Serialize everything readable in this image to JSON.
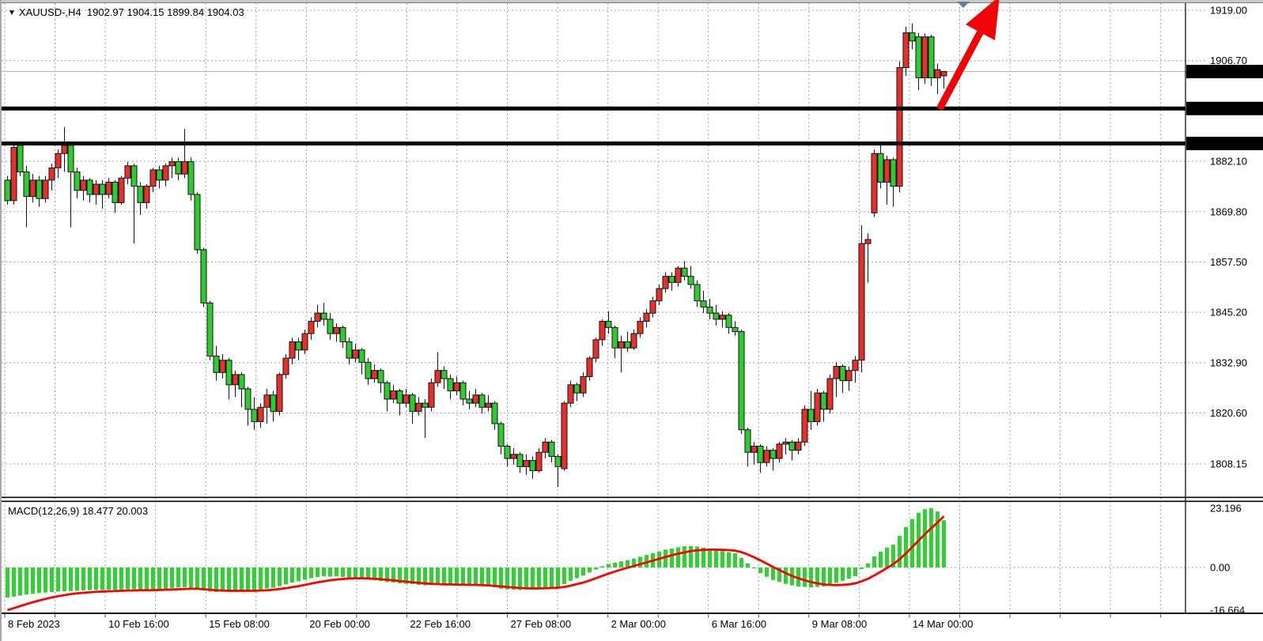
{
  "window": {
    "title_symbol": "XAUUSD-,H4",
    "ohlc_line": "1902.97 1904.15 1899.84 1904.03"
  },
  "chart_data": {
    "type": "candlestick",
    "symbol": "XAUUSD-",
    "timeframe": "H4",
    "title": "XAUUSD-,H4 1902.97 1904.15 1899.84 1904.03",
    "current_candle": {
      "open": 1902.97,
      "high": 1904.15,
      "low": 1899.84,
      "close": 1904.03
    },
    "legend_position": "top-left",
    "grid": true,
    "x_labels": [
      "8 Feb 2023",
      "10 Feb 16:00",
      "15 Feb 08:00",
      "20 Feb 00:00",
      "22 Feb 16:00",
      "27 Feb 08:00",
      "2 Mar 00:00",
      "6 Mar 16:00",
      "9 Mar 08:00",
      "14 Mar 00:00"
    ],
    "price_axis": {
      "min": 1808.15,
      "max": 1919.0,
      "ticks": [
        {
          "label": "1919.00",
          "value": 1919.0
        },
        {
          "label": "1906.70",
          "value": 1906.7
        },
        {
          "label": "1882.10",
          "value": 1882.1
        },
        {
          "label": "1869.80",
          "value": 1869.8
        },
        {
          "label": "1857.50",
          "value": 1857.5
        },
        {
          "label": "1845.20",
          "value": 1845.2
        },
        {
          "label": "1832.90",
          "value": 1832.9
        },
        {
          "label": "1820.60",
          "value": 1820.6
        },
        {
          "label": "1808.15",
          "value": 1808.15
        }
      ]
    },
    "price_lines": [
      {
        "label": "1904.03",
        "value": 1904.03,
        "style": "current-price"
      },
      {
        "label": "1895.00",
        "value": 1895.0,
        "style": "black-hline"
      },
      {
        "label": "1886.45",
        "value": 1886.45,
        "style": "black-hline"
      }
    ],
    "colors": {
      "bull": "#e8302a",
      "bear": "#2fcc2f",
      "wick": "#111111",
      "macd_hist": "#2fd32f",
      "macd_signal": "#ff0000",
      "grid": "#9aa4b0",
      "hline": "#000000",
      "current_line": "#b3b8c0",
      "arrow": "#ef0505",
      "marker": "#6a7f96",
      "label_bg": "#000000",
      "label_fg": "#ffffff"
    },
    "candles": [
      [
        1877.5,
        1878.5,
        1871.5,
        1872.5
      ],
      [
        1872.5,
        1886.5,
        1871.5,
        1885.5
      ],
      [
        1886,
        1886.5,
        1878.5,
        1879.5
      ],
      [
        1879.5,
        1881,
        1866,
        1873.5
      ],
      [
        1873.5,
        1879,
        1872,
        1877.5
      ],
      [
        1877.5,
        1878.5,
        1871,
        1873
      ],
      [
        1873,
        1878.5,
        1872,
        1877.5
      ],
      [
        1877.5,
        1881.5,
        1875,
        1880.5
      ],
      [
        1880.5,
        1885,
        1878,
        1884
      ],
      [
        1884,
        1890.5,
        1879.5,
        1886
      ],
      [
        1886,
        1886.5,
        1866,
        1879.5
      ],
      [
        1879.5,
        1880.5,
        1873,
        1875
      ],
      [
        1875,
        1878.5,
        1872.5,
        1877.5
      ],
      [
        1877.5,
        1878,
        1872,
        1874
      ],
      [
        1874,
        1877.5,
        1871.5,
        1876.5
      ],
      [
        1876.5,
        1877.5,
        1870.5,
        1874
      ],
      [
        1874,
        1878,
        1873,
        1877
      ],
      [
        1877,
        1877.5,
        1869.5,
        1872
      ],
      [
        1872,
        1878.5,
        1871.5,
        1878
      ],
      [
        1878,
        1882,
        1876.5,
        1881
      ],
      [
        1881,
        1881.5,
        1862,
        1876
      ],
      [
        1876,
        1877,
        1869,
        1872
      ],
      [
        1872,
        1876.5,
        1870.5,
        1876
      ],
      [
        1876,
        1880.5,
        1874.5,
        1880
      ],
      [
        1880,
        1881,
        1875.5,
        1877.5
      ],
      [
        1877.5,
        1881.5,
        1876,
        1881
      ],
      [
        1881,
        1883,
        1878,
        1882
      ],
      [
        1882,
        1883,
        1877.5,
        1879
      ],
      [
        1879,
        1890,
        1878,
        1882
      ],
      [
        1882,
        1883,
        1872.5,
        1874
      ],
      [
        1874,
        1874.5,
        1859.5,
        1860.5
      ],
      [
        1860.5,
        1861,
        1846.5,
        1847.5
      ],
      [
        1847.5,
        1848,
        1833.5,
        1834.5
      ],
      [
        1834.5,
        1837,
        1828.5,
        1830.5
      ],
      [
        1830.5,
        1835,
        1829,
        1833.5
      ],
      [
        1833.5,
        1834,
        1824,
        1827.5
      ],
      [
        1827.5,
        1831,
        1824.5,
        1830
      ],
      [
        1830,
        1830.5,
        1822,
        1826.5
      ],
      [
        1826.5,
        1827,
        1817.5,
        1821.5
      ],
      [
        1821.5,
        1824.5,
        1816.5,
        1818.5
      ],
      [
        1818.5,
        1823,
        1817,
        1822
      ],
      [
        1822,
        1826.5,
        1818,
        1825
      ],
      [
        1825,
        1826,
        1818.5,
        1821
      ],
      [
        1821,
        1830.5,
        1820,
        1830
      ],
      [
        1830,
        1835,
        1829,
        1834
      ],
      [
        1834,
        1839,
        1832.5,
        1838
      ],
      [
        1838,
        1839,
        1833.5,
        1836
      ],
      [
        1836,
        1841,
        1835,
        1840
      ],
      [
        1840,
        1844,
        1838.5,
        1843
      ],
      [
        1843,
        1847,
        1841.5,
        1845
      ],
      [
        1845,
        1847.5,
        1842,
        1843.5
      ],
      [
        1843.5,
        1845,
        1838.5,
        1840
      ],
      [
        1840,
        1842.5,
        1838,
        1841.5
      ],
      [
        1841.5,
        1842,
        1836.5,
        1838
      ],
      [
        1838,
        1839,
        1832.5,
        1834
      ],
      [
        1834,
        1837.5,
        1833,
        1836
      ],
      [
        1836,
        1836.5,
        1830,
        1833
      ],
      [
        1833,
        1834,
        1827.5,
        1829
      ],
      [
        1829,
        1832.5,
        1828,
        1831
      ],
      [
        1831,
        1831.5,
        1825.5,
        1828
      ],
      [
        1828,
        1828.5,
        1821,
        1824
      ],
      [
        1824,
        1827.5,
        1823,
        1826
      ],
      [
        1826,
        1826.5,
        1820,
        1823
      ],
      [
        1823,
        1826.5,
        1822,
        1825
      ],
      [
        1825,
        1825.5,
        1818,
        1821
      ],
      [
        1821,
        1824.5,
        1820,
        1823
      ],
      [
        1823,
        1824,
        1814.5,
        1822
      ],
      [
        1822,
        1829,
        1821,
        1828
      ],
      [
        1828,
        1835.5,
        1827,
        1831
      ],
      [
        1831,
        1832,
        1826.5,
        1829
      ],
      [
        1829,
        1830,
        1824,
        1826
      ],
      [
        1826,
        1829.5,
        1825,
        1828
      ],
      [
        1828,
        1828.5,
        1822.5,
        1824
      ],
      [
        1824,
        1826,
        1821.5,
        1823
      ],
      [
        1823,
        1826.5,
        1822,
        1825
      ],
      [
        1825,
        1825.5,
        1820.5,
        1822
      ],
      [
        1822,
        1825,
        1821,
        1823
      ],
      [
        1823,
        1823.5,
        1816.5,
        1818
      ],
      [
        1818,
        1818.5,
        1810.5,
        1812.5
      ],
      [
        1812.5,
        1813,
        1807.5,
        1809.5
      ],
      [
        1809.5,
        1812,
        1808,
        1810.5
      ],
      [
        1810.5,
        1811,
        1806,
        1807.5
      ],
      [
        1807.5,
        1810.5,
        1805.5,
        1809
      ],
      [
        1809,
        1810,
        1804.5,
        1806.5
      ],
      [
        1806.5,
        1812,
        1806,
        1811
      ],
      [
        1811,
        1814.5,
        1809.5,
        1813.5
      ],
      [
        1813.5,
        1814,
        1808.5,
        1810
      ],
      [
        1810,
        1810.5,
        1802.5,
        1807.5
      ],
      [
        1807,
        1823.5,
        1806.5,
        1823
      ],
      [
        1823,
        1828.5,
        1822,
        1827.5
      ],
      [
        1827.5,
        1828,
        1823.5,
        1825.5
      ],
      [
        1825.5,
        1830.5,
        1824.5,
        1829.5
      ],
      [
        1829.5,
        1834.5,
        1828.5,
        1834
      ],
      [
        1834,
        1839,
        1833,
        1838.5
      ],
      [
        1838.5,
        1843.5,
        1837,
        1843
      ],
      [
        1843,
        1845.5,
        1840,
        1841.5
      ],
      [
        1841.5,
        1842,
        1834,
        1836.5
      ],
      [
        1836.5,
        1839.5,
        1830.5,
        1838
      ],
      [
        1838,
        1840.5,
        1835.5,
        1836.5
      ],
      [
        1836.5,
        1841,
        1836,
        1840
      ],
      [
        1840,
        1844,
        1839,
        1843
      ],
      [
        1843,
        1846,
        1841.5,
        1845
      ],
      [
        1845,
        1849,
        1844,
        1848
      ],
      [
        1848,
        1852,
        1847,
        1851
      ],
      [
        1851,
        1855,
        1850,
        1854
      ],
      [
        1854,
        1855,
        1850.5,
        1852.5
      ],
      [
        1852.5,
        1856.5,
        1851.5,
        1856
      ],
      [
        1856,
        1857.7,
        1853,
        1854
      ],
      [
        1854,
        1856.5,
        1851,
        1852
      ],
      [
        1852,
        1853,
        1846.5,
        1848
      ],
      [
        1848,
        1850.5,
        1845,
        1846.5
      ],
      [
        1846.5,
        1848.5,
        1843.5,
        1845
      ],
      [
        1845,
        1847,
        1842,
        1843.5
      ],
      [
        1843.5,
        1845.5,
        1841.5,
        1844.5
      ],
      [
        1844.5,
        1845,
        1840,
        1841.5
      ],
      [
        1841.5,
        1843,
        1839.5,
        1840.5
      ],
      [
        1840.5,
        1841,
        1815.5,
        1816.5
      ],
      [
        1816.5,
        1817,
        1807.5,
        1811
      ],
      [
        1811,
        1813.5,
        1808,
        1812.5
      ],
      [
        1812.5,
        1813,
        1806,
        1808.5
      ],
      [
        1808.5,
        1812.5,
        1807.5,
        1811.5
      ],
      [
        1811.5,
        1812,
        1806.5,
        1809.5
      ],
      [
        1809.5,
        1813.5,
        1808.5,
        1813
      ],
      [
        1813,
        1814.5,
        1810.5,
        1813.5
      ],
      [
        1813.5,
        1814,
        1809,
        1811.5
      ],
      [
        1811.5,
        1814.5,
        1810.5,
        1813.5
      ],
      [
        1813.5,
        1822.5,
        1812.5,
        1821.5
      ],
      [
        1821.5,
        1826,
        1816.5,
        1818.5
      ],
      [
        1818.5,
        1826.5,
        1817.5,
        1825.5
      ],
      [
        1825.5,
        1826,
        1818.5,
        1821.5
      ],
      [
        1821.5,
        1830,
        1820.5,
        1829
      ],
      [
        1829,
        1833,
        1824.5,
        1832
      ],
      [
        1832,
        1832.5,
        1825.5,
        1828.5
      ],
      [
        1828.5,
        1832,
        1826,
        1831
      ],
      [
        1831,
        1834.5,
        1828,
        1833.5
      ],
      [
        1833.5,
        1866.5,
        1830.5,
        1862
      ],
      [
        1862,
        1864.5,
        1852.5,
        1863
      ],
      [
        1869.5,
        1885,
        1868.5,
        1884
      ],
      [
        1884,
        1886.5,
        1875.5,
        1877
      ],
      [
        1877,
        1883.5,
        1871.5,
        1882.5
      ],
      [
        1882.5,
        1883,
        1871,
        1876
      ],
      [
        1876,
        1906.5,
        1874.5,
        1905
      ],
      [
        1905,
        1915,
        1903,
        1913.5
      ],
      [
        1913.5,
        1915.8,
        1909.5,
        1911.5
      ],
      [
        1912.5,
        1913.5,
        1899.5,
        1902.5
      ],
      [
        1902.5,
        1913.3,
        1901,
        1912.5
      ],
      [
        1912.5,
        1913,
        1900.5,
        1902.5
      ],
      [
        1902.5,
        1906,
        1898.5,
        1904.5
      ],
      [
        1902.97,
        1904.15,
        1899.84,
        1904.03
      ]
    ],
    "macd": {
      "label": "MACD(12,26,9)",
      "values_line": "18.477 20.003",
      "main_current": 18.477,
      "signal_current": 20.003,
      "axis_ticks": [
        {
          "label": "23.196",
          "value": 23.196
        },
        {
          "label": "0.00",
          "value": 0
        },
        {
          "label": "-16.664",
          "value": -16.664
        }
      ],
      "histogram": [
        -11.8,
        -11.4,
        -11.0,
        -10.6,
        -10.3,
        -10.0,
        -9.8,
        -9.6,
        -9.4,
        -9.3,
        -9.2,
        -9.1,
        -9.0,
        -8.9,
        -8.8,
        -8.8,
        -8.7,
        -8.7,
        -8.6,
        -8.5,
        -8.5,
        -8.6,
        -8.7,
        -8.6,
        -8.5,
        -8.3,
        -8.0,
        -7.8,
        -7.7,
        -7.9,
        -8.4,
        -8.9,
        -9.4,
        -9.6,
        -9.5,
        -9.4,
        -9.2,
        -9.0,
        -8.9,
        -8.8,
        -8.6,
        -8.2,
        -7.9,
        -7.3,
        -6.6,
        -5.9,
        -5.4,
        -4.8,
        -4.2,
        -3.7,
        -3.5,
        -3.6,
        -3.5,
        -3.7,
        -4.0,
        -4.1,
        -4.4,
        -4.8,
        -5.0,
        -5.3,
        -5.7,
        -5.9,
        -6.2,
        -6.4,
        -6.5,
        -6.8,
        -7.0,
        -6.9,
        -6.7,
        -6.6,
        -6.7,
        -6.7,
        -6.9,
        -7.0,
        -7.0,
        -7.1,
        -7.2,
        -7.7,
        -8.3,
        -8.6,
        -8.7,
        -8.8,
        -8.7,
        -8.7,
        -8.4,
        -8.0,
        -7.8,
        -7.7,
        -6.5,
        -5.2,
        -4.2,
        -3.2,
        -2.0,
        -0.8,
        0.5,
        1.4,
        1.9,
        2.4,
        2.9,
        3.5,
        4.2,
        4.9,
        5.6,
        6.3,
        7.0,
        7.4,
        7.9,
        8.3,
        8.4,
        8.2,
        7.8,
        7.3,
        6.8,
        6.4,
        6.0,
        5.6,
        3.8,
        1.6,
        -0.2,
        -2.2,
        -3.6,
        -4.9,
        -5.7,
        -6.4,
        -7.0,
        -7.5,
        -7.6,
        -7.8,
        -7.6,
        -7.4,
        -6.8,
        -6.0,
        -5.2,
        -4.4,
        -3.4,
        -0.6,
        1.6,
        4.4,
        6.2,
        7.8,
        8.9,
        12.4,
        15.8,
        18.9,
        21.4,
        22.8,
        23.196,
        21.9,
        18.477
      ],
      "signal": [
        -16.664,
        -15.9,
        -15.1,
        -14.3,
        -13.6,
        -12.9,
        -12.3,
        -11.7,
        -11.2,
        -10.8,
        -10.4,
        -10.1,
        -9.9,
        -9.7,
        -9.5,
        -9.4,
        -9.3,
        -9.2,
        -9.1,
        -9.0,
        -9.0,
        -8.9,
        -8.9,
        -8.9,
        -8.8,
        -8.7,
        -8.6,
        -8.5,
        -8.4,
        -8.3,
        -8.3,
        -8.5,
        -8.7,
        -8.9,
        -9.0,
        -9.1,
        -9.1,
        -9.1,
        -9.1,
        -9.1,
        -9.0,
        -8.9,
        -8.7,
        -8.4,
        -8.1,
        -7.7,
        -7.3,
        -6.8,
        -6.3,
        -5.8,
        -5.4,
        -5.0,
        -4.7,
        -4.5,
        -4.3,
        -4.2,
        -4.2,
        -4.3,
        -4.4,
        -4.6,
        -4.8,
        -5.0,
        -5.3,
        -5.5,
        -5.8,
        -6.0,
        -6.2,
        -6.4,
        -6.5,
        -6.6,
        -6.6,
        -6.7,
        -6.7,
        -6.8,
        -6.8,
        -6.9,
        -7.0,
        -7.2,
        -7.4,
        -7.6,
        -7.8,
        -8.0,
        -8.1,
        -8.2,
        -8.2,
        -8.1,
        -8.0,
        -7.9,
        -7.6,
        -7.1,
        -6.5,
        -5.9,
        -5.1,
        -4.2,
        -3.3,
        -2.4,
        -1.6,
        -0.8,
        -0.1,
        0.6,
        1.3,
        2.0,
        2.7,
        3.4,
        4.1,
        4.8,
        5.4,
        5.9,
        6.4,
        6.7,
        6.9,
        7.0,
        7.0,
        6.9,
        6.8,
        6.6,
        6.0,
        5.1,
        4.0,
        2.8,
        1.5,
        0.2,
        -1.0,
        -2.2,
        -3.3,
        -4.2,
        -5.0,
        -5.7,
        -6.2,
        -6.6,
        -6.8,
        -6.9,
        -6.8,
        -6.6,
        -6.2,
        -5.4,
        -4.4,
        -3.1,
        -1.7,
        -0.2,
        1.3,
        3.2,
        5.5,
        8.0,
        10.5,
        13.0,
        15.4,
        17.6,
        20.003
      ]
    },
    "annotations": {
      "trend_arrow": "red up-right arrow near last candles",
      "top_marker": "gray down triangle at top"
    }
  }
}
